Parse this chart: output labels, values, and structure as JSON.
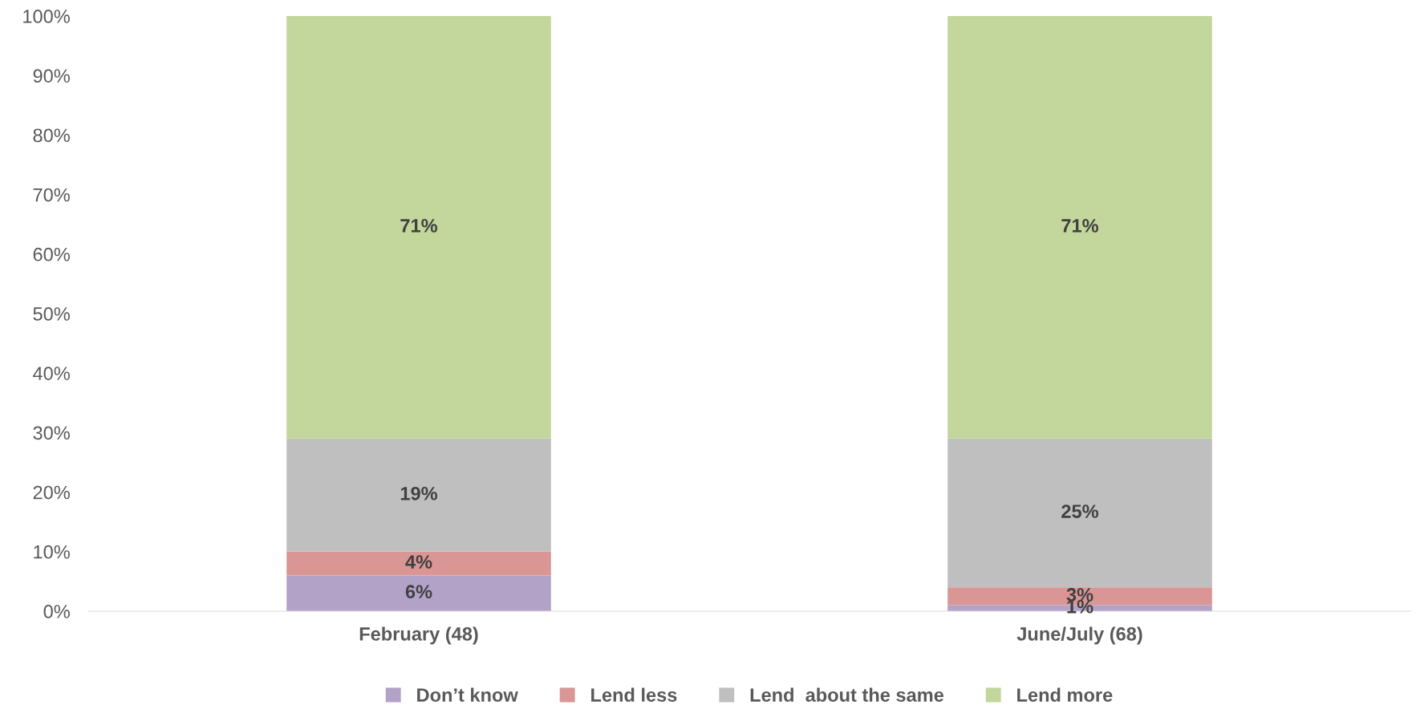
{
  "chart_data": {
    "type": "bar",
    "stacked": true,
    "categories": [
      "February (48)",
      "June/July (68)"
    ],
    "series": [
      {
        "name": "Don’t know",
        "color": "#b3a2c7",
        "values": [
          6,
          1
        ],
        "value_labels": [
          "6%",
          "1%"
        ]
      },
      {
        "name": "Lend less",
        "color": "#d99694",
        "values": [
          4,
          3
        ],
        "value_labels": [
          "4%",
          "3%"
        ]
      },
      {
        "name": "Lend  about the same",
        "color": "#bfbfbf",
        "values": [
          19,
          25
        ],
        "value_labels": [
          "19%",
          "25%"
        ]
      },
      {
        "name": "Lend more",
        "color": "#c3d69b",
        "values": [
          71,
          71
        ],
        "value_labels": [
          "71%",
          "71%"
        ]
      }
    ],
    "ylim": [
      0,
      100
    ],
    "yticks": [
      {
        "value": 0,
        "label": "0%"
      },
      {
        "value": 10,
        "label": "10%"
      },
      {
        "value": 20,
        "label": "20%"
      },
      {
        "value": 30,
        "label": "30%"
      },
      {
        "value": 40,
        "label": "40%"
      },
      {
        "value": 50,
        "label": "50%"
      },
      {
        "value": 60,
        "label": "60%"
      },
      {
        "value": 70,
        "label": "70%"
      },
      {
        "value": 80,
        "label": "80%"
      },
      {
        "value": 90,
        "label": "90%"
      },
      {
        "value": 100,
        "label": "100%"
      }
    ],
    "grid": false,
    "legend": "bottom"
  }
}
